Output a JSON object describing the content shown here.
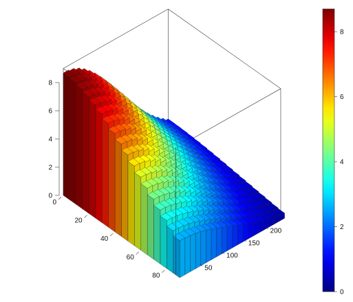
{
  "chart_data": {
    "type": "bar3d",
    "description_free": true,
    "title": "",
    "xlabel": "",
    "ylabel": "",
    "zlabel": "",
    "x_ticks": [
      0,
      20,
      40,
      60,
      80
    ],
    "y_ticks": [
      50,
      100,
      150,
      200
    ],
    "z_ticks": [
      0,
      2,
      4,
      6,
      8
    ],
    "xlim": [
      0,
      87
    ],
    "ylim": [
      0,
      240
    ],
    "zlim": [
      0,
      9
    ],
    "colorbar": {
      "ticks": [
        0,
        2,
        4,
        6,
        8
      ],
      "range": [
        0,
        8.7
      ],
      "palette": "jet"
    },
    "grid": {
      "x_start": 0,
      "x_step": 5,
      "x_count": 18,
      "y_start": 0,
      "y_step": 12,
      "y_count": 20
    },
    "surface_model": {
      "peak": 8.7,
      "peak_x": 0,
      "peak_y": 0,
      "decay_x": 0.0125,
      "decay_y": 0.006,
      "floor": 0.3
    }
  }
}
